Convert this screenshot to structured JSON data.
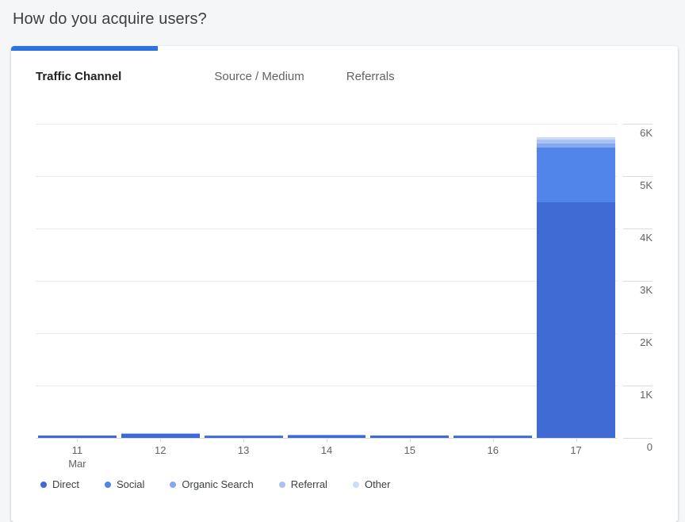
{
  "page": {
    "title": "How do you acquire users?"
  },
  "accent_color": "#2e71e0",
  "tabs": [
    {
      "label": "Traffic Channel",
      "active": true
    },
    {
      "label": "Source / Medium",
      "active": false
    },
    {
      "label": "Referrals",
      "active": false
    }
  ],
  "chart_data": {
    "type": "bar",
    "stacked": true,
    "x_axis_label_sub": "Mar",
    "categories": [
      "11",
      "12",
      "13",
      "14",
      "15",
      "16",
      "17"
    ],
    "category_sub_labels": [
      "Mar",
      "",
      "",
      "",
      "",
      "",
      ""
    ],
    "series": [
      {
        "name": "Direct",
        "color": "#3f6ad4",
        "values": [
          40,
          70,
          34,
          46,
          40,
          34,
          4500
        ]
      },
      {
        "name": "Social",
        "color": "#5285ea",
        "values": [
          6,
          8,
          5,
          6,
          6,
          5,
          1050
        ]
      },
      {
        "name": "Organic Search",
        "color": "#85a9f0",
        "values": [
          3,
          4,
          2,
          3,
          3,
          2,
          75
        ]
      },
      {
        "name": "Referral",
        "color": "#a9c2f2",
        "values": [
          2,
          3,
          2,
          3,
          2,
          2,
          70
        ]
      },
      {
        "name": "Other",
        "color": "#cfdaf6",
        "values": [
          2,
          3,
          2,
          2,
          2,
          2,
          45
        ]
      }
    ],
    "y_ticks": [
      "6K",
      "5K",
      "4K",
      "3K",
      "2K",
      "1K",
      "0"
    ],
    "ylim": [
      0,
      6000
    ],
    "y_axis_side": "right",
    "grid": true,
    "legend_position": "bottom",
    "title": "",
    "xlabel": "",
    "ylabel": ""
  }
}
